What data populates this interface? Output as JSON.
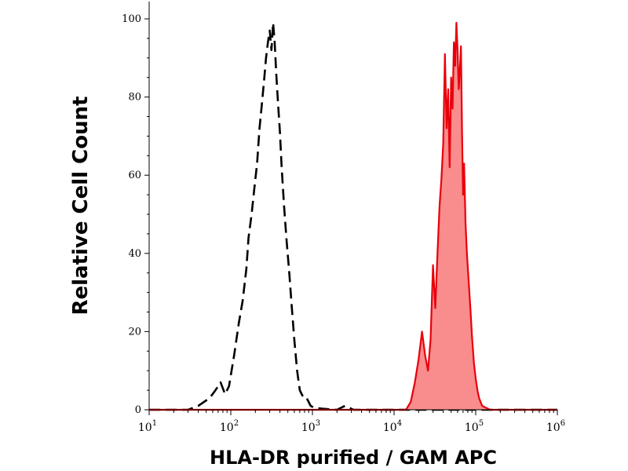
{
  "chart_data": {
    "type": "area",
    "xlabel": "HLA-DR purified / GAM APC",
    "ylabel": "Relative Cell Count",
    "xscale": "log",
    "xlim": [
      10,
      1000000
    ],
    "ylim": [
      0,
      100
    ],
    "yticks": [
      "0",
      "20",
      "40",
      "60",
      "80",
      "100"
    ],
    "xticks": [
      {
        "base": "10",
        "exp": "1"
      },
      {
        "base": "10",
        "exp": "2"
      },
      {
        "base": "10",
        "exp": "3"
      },
      {
        "base": "10",
        "exp": "4"
      },
      {
        "base": "10",
        "exp": "5"
      },
      {
        "base": "10",
        "exp": "6"
      }
    ],
    "grid": false,
    "series": [
      {
        "style": "dashed",
        "color": "#000000",
        "fill": "none",
        "points": [
          [
            10,
            0
          ],
          [
            30,
            0
          ],
          [
            40,
            1
          ],
          [
            55,
            3
          ],
          [
            65,
            5
          ],
          [
            75,
            7
          ],
          [
            85,
            4
          ],
          [
            95,
            6
          ],
          [
            110,
            14
          ],
          [
            125,
            22
          ],
          [
            140,
            28
          ],
          [
            155,
            36
          ],
          [
            165,
            44
          ],
          [
            180,
            50
          ],
          [
            195,
            57
          ],
          [
            210,
            63
          ],
          [
            225,
            72
          ],
          [
            240,
            78
          ],
          [
            255,
            84
          ],
          [
            270,
            90
          ],
          [
            285,
            94
          ],
          [
            300,
            97
          ],
          [
            315,
            92
          ],
          [
            330,
            99
          ],
          [
            345,
            94
          ],
          [
            360,
            86
          ],
          [
            380,
            78
          ],
          [
            400,
            71
          ],
          [
            420,
            62
          ],
          [
            450,
            52
          ],
          [
            480,
            44
          ],
          [
            520,
            35
          ],
          [
            560,
            26
          ],
          [
            600,
            18
          ],
          [
            650,
            10
          ],
          [
            700,
            5
          ],
          [
            780,
            3
          ],
          [
            850,
            3
          ],
          [
            950,
            1
          ],
          [
            1050,
            0.5
          ],
          [
            1300,
            0.3
          ],
          [
            2000,
            0
          ],
          [
            2500,
            1
          ],
          [
            3200,
            0
          ],
          [
            1000000,
            0
          ]
        ]
      },
      {
        "style": "solid",
        "color": "#e8000b",
        "fill": "#f98c8c",
        "points": [
          [
            10,
            0
          ],
          [
            14000,
            0
          ],
          [
            16000,
            2
          ],
          [
            18000,
            7
          ],
          [
            20000,
            13
          ],
          [
            22000,
            20
          ],
          [
            24000,
            14
          ],
          [
            26000,
            10
          ],
          [
            28000,
            18
          ],
          [
            30000,
            37
          ],
          [
            32000,
            26
          ],
          [
            34000,
            40
          ],
          [
            36000,
            52
          ],
          [
            38000,
            59
          ],
          [
            40000,
            68
          ],
          [
            42000,
            91
          ],
          [
            44000,
            72
          ],
          [
            46000,
            82
          ],
          [
            48000,
            62
          ],
          [
            50000,
            85
          ],
          [
            52000,
            77
          ],
          [
            54000,
            94
          ],
          [
            56000,
            88
          ],
          [
            58000,
            99
          ],
          [
            60000,
            92
          ],
          [
            62000,
            82
          ],
          [
            64000,
            87
          ],
          [
            66000,
            93
          ],
          [
            68000,
            71
          ],
          [
            70000,
            55
          ],
          [
            72000,
            63
          ],
          [
            75000,
            48
          ],
          [
            78000,
            40
          ],
          [
            82000,
            33
          ],
          [
            86000,
            26
          ],
          [
            90000,
            19
          ],
          [
            95000,
            12
          ],
          [
            100000,
            8
          ],
          [
            105000,
            5
          ],
          [
            110000,
            3
          ],
          [
            120000,
            1
          ],
          [
            150000,
            0
          ],
          [
            1000000,
            0
          ]
        ]
      }
    ]
  }
}
